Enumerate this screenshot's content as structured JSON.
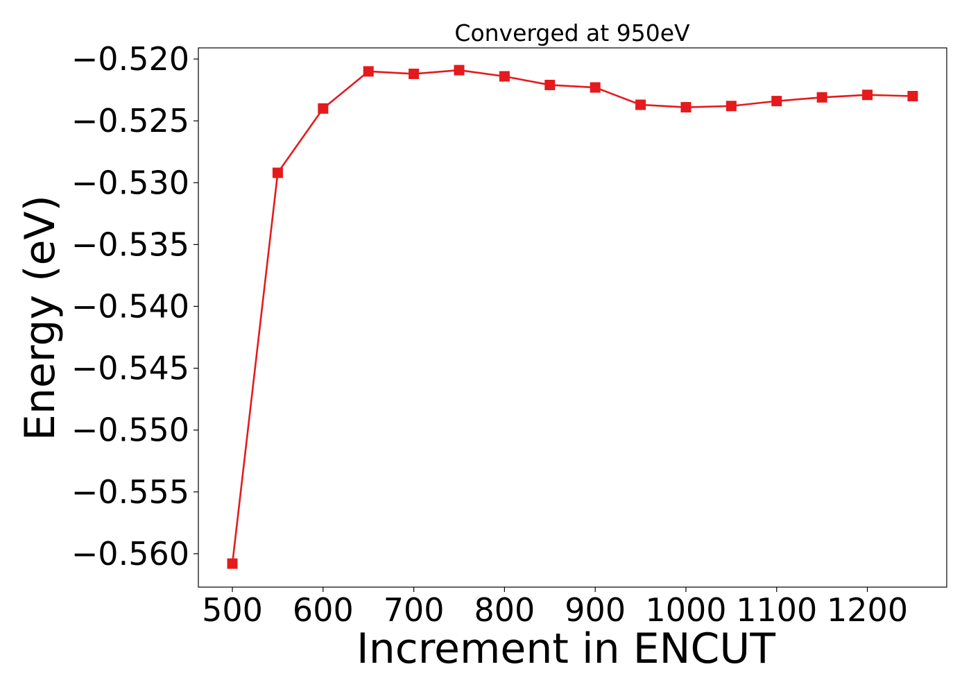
{
  "chart_data": {
    "type": "line",
    "title": "Converged at 950eV",
    "xlabel": "Increment in ENCUT",
    "ylabel": "Energy (eV)",
    "xlim": [
      462.5,
      1287.5
    ],
    "ylim": [
      -0.5627,
      -0.5191
    ],
    "x_ticks": [
      500,
      600,
      700,
      800,
      900,
      1000,
      1100,
      1200
    ],
    "x_tick_labels": [
      "500",
      "600",
      "700",
      "800",
      "900",
      "1000",
      "1100",
      "1200"
    ],
    "y_ticks": [
      -0.52,
      -0.525,
      -0.53,
      -0.535,
      -0.54,
      -0.545,
      -0.55,
      -0.555,
      -0.56
    ],
    "y_tick_labels": [
      "−0.520",
      "−0.525",
      "−0.530",
      "−0.535",
      "−0.540",
      "−0.545",
      "−0.550",
      "−0.555",
      "−0.560"
    ],
    "grid": false,
    "series": [
      {
        "color": "#e41a1c",
        "marker": "square",
        "x": [
          500,
          550,
          600,
          650,
          700,
          750,
          800,
          850,
          900,
          950,
          1000,
          1050,
          1100,
          1150,
          1200,
          1250
        ],
        "y": [
          -0.5608,
          -0.5292,
          -0.524,
          -0.521,
          -0.5212,
          -0.5209,
          -0.5214,
          -0.5221,
          -0.5223,
          -0.5237,
          -0.5239,
          -0.5238,
          -0.5234,
          -0.5231,
          -0.5229,
          -0.523
        ]
      }
    ]
  }
}
